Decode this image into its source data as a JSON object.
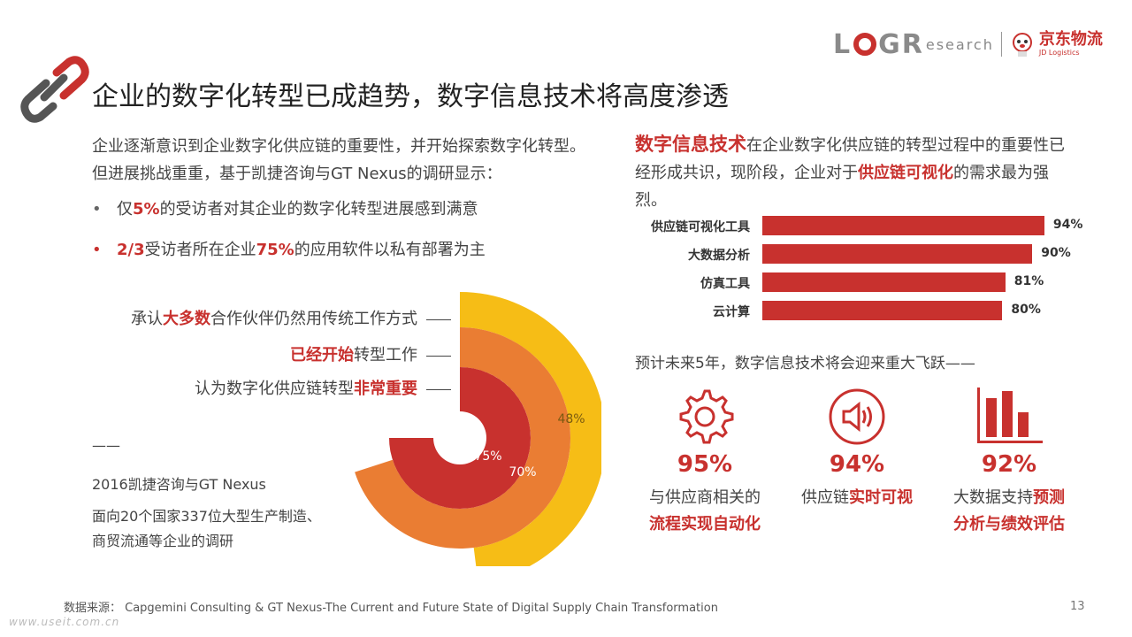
{
  "header": {
    "title": "企业的数字化转型已成趋势，数字信息技术将高度渗透",
    "logo_left": "L",
    "logo_right": "GR",
    "logo_research": "esearch",
    "jd_cn": "京东物流",
    "jd_en": "JD Logistics"
  },
  "left": {
    "intro_1": "企业逐渐意识到企业数字化供应链的重要性，并开始探索数字化转型。但进展挑战重重，基于凯捷咨询与GT Nexus的调研显示：",
    "bullet1": {
      "dot": "•",
      "pre": "仅",
      "hl": "5%",
      "post": "的受访者对其企业的数字化转型进展感到满意"
    },
    "bullet2": {
      "dot": "•",
      "hl1": "2/3",
      "mid": "受访者所在企业",
      "hl2": "75%",
      "post": "的应用软件以私有部署为主"
    },
    "legend": [
      {
        "pre": "承认",
        "hl": "大多数",
        "post": "合作伙伴仍然用传统工作方式"
      },
      {
        "pre": "",
        "hl": "已经开始",
        "post": "转型工作"
      },
      {
        "pre": "认为数字化供应链转型",
        "hl": "非常重要",
        "post": ""
      }
    ],
    "note_dash": "——",
    "note_1": "2016凯捷咨询与GT Nexus",
    "note_2": "面向20个国家337位大型生产制造、",
    "note_3": "商贸流通等企业的调研"
  },
  "right": {
    "intro_big": "数字信息技术",
    "intro_1": "在企业数字化供应链的转型过程中的重要性已经形成共识，现阶段，企业对于",
    "intro_hl": "供应链可视化",
    "intro_2": "的需求最为强烈。",
    "forecast": "预计未来5年，数字信息技术将会迎来重大飞跃——",
    "stats": [
      {
        "icon": "gear-icon",
        "pct": "95%",
        "line1": "与供应商相关的",
        "line2_hl": "流程实现自动化",
        "line2_pre": ""
      },
      {
        "icon": "speaker-icon",
        "pct": "94%",
        "line1_pre": "供应链",
        "line1_hl": "实时可视"
      },
      {
        "icon": "bar-chart-icon",
        "pct": "92%",
        "line1_pre": "大数据支持",
        "line1_hl": "预测",
        "line2_hl": "分析与绩效评估"
      }
    ]
  },
  "footer": {
    "source": "数据来源： Capgemini Consulting & GT Nexus-The Current and Future State of Digital Supply Chain Transformation",
    "page": "13",
    "watermark": "www.useit.com.cn"
  },
  "colors": {
    "accent": "#c8312e",
    "orange": "#ea7d33",
    "yellow": "#f6bd16"
  },
  "chart_data": [
    {
      "type": "bar",
      "orientation": "horizontal",
      "categories": [
        "供应链可视化工具",
        "大数据分析",
        "仿真工具",
        "云计算"
      ],
      "values": [
        94,
        90,
        81,
        80
      ],
      "labels": [
        "94%",
        "90%",
        "81%",
        "80%"
      ],
      "xlim": [
        0,
        100
      ]
    },
    {
      "type": "pie",
      "variant": "concentric-arcs",
      "series": [
        {
          "value": 75,
          "label": "75%",
          "color": "#c8312e"
        },
        {
          "value": 70,
          "label": "70%",
          "color": "#ea7d33"
        },
        {
          "value": 48,
          "label": "48%",
          "color": "#f6bd16"
        }
      ]
    }
  ]
}
